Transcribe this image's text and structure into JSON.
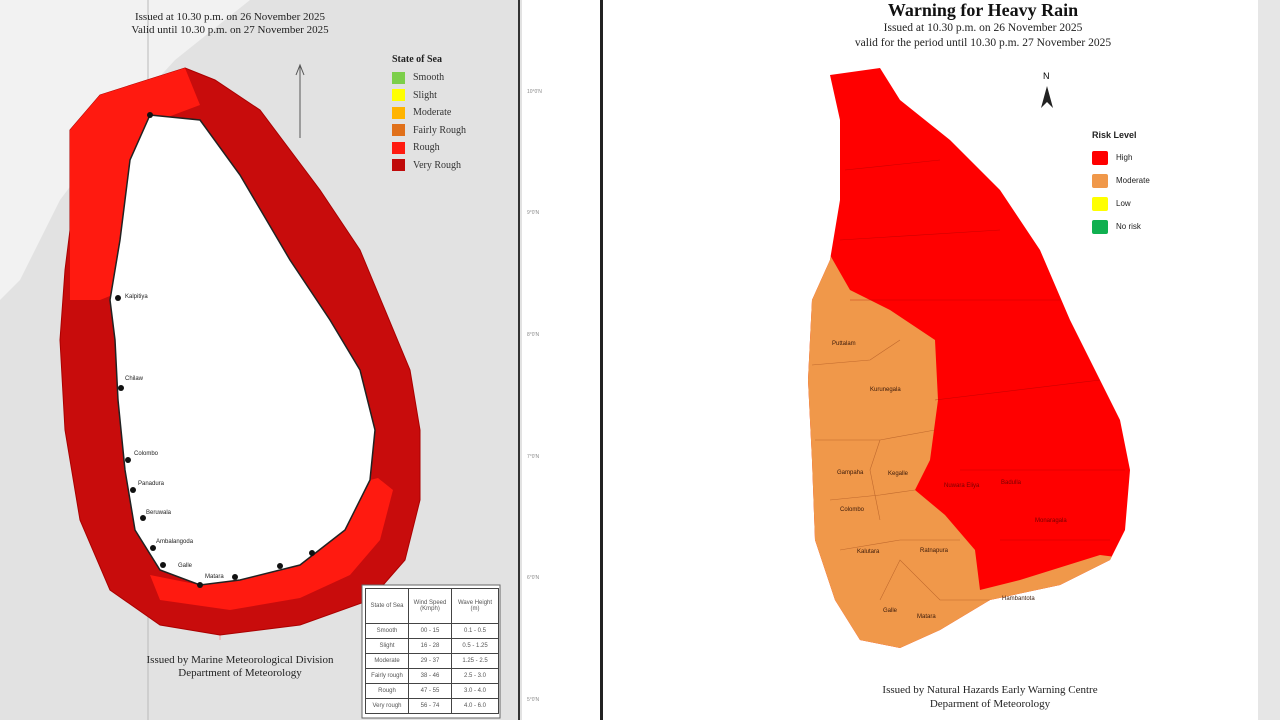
{
  "sea_map": {
    "issued": "Issued at 10.30 p.m. on 26 November 2025",
    "valid": "Valid until 10.30 p.m. on 27 November 2025",
    "legend": {
      "title": "State of Sea",
      "items": [
        {
          "label": "Smooth",
          "color": "#7ccf4a"
        },
        {
          "label": "Slight",
          "color": "#ffff00"
        },
        {
          "label": "Moderate",
          "color": "#ffb400"
        },
        {
          "label": "Fairly Rough",
          "color": "#e0701a"
        },
        {
          "label": "Rough",
          "color": "#ff1a10"
        },
        {
          "label": "Very Rough",
          "color": "#c00a0a"
        }
      ]
    },
    "places": [
      "Kalpitiya",
      "Chilaw",
      "Colombo",
      "Panadura",
      "Beruwala",
      "Ambalangoda",
      "Galle",
      "Matara"
    ],
    "lat_ticks": [
      "10°0'N",
      "9°0'N",
      "8°0'N",
      "7°0'N",
      "6°0'N",
      "5°0'N"
    ],
    "table": {
      "headers": [
        "State of Sea",
        "Wind Speed (Kmph)",
        "Wave Height (m)"
      ],
      "rows": [
        [
          "Smooth",
          "00 - 15",
          "0.1 - 0.5"
        ],
        [
          "Slight",
          "16 - 28",
          "0.5 - 1.25"
        ],
        [
          "Moderate",
          "29 - 37",
          "1.25 - 2.5"
        ],
        [
          "Fairly rough",
          "38 - 46",
          "2.5 - 3.0"
        ],
        [
          "Rough",
          "47 - 55",
          "3.0 - 4.0"
        ],
        [
          "Very rough",
          "56 - 74",
          "4.0 - 6.0"
        ]
      ]
    },
    "footer1": "Issued by Marine Meteorological Division",
    "footer2": "Department of Meteorology"
  },
  "rain_map": {
    "title": "Warning  for Heavy Rain",
    "issued": "Issued at 10.30 p.m. on 26 November 2025",
    "valid": "valid for the period until 10.30 p.m. 27 November 2025",
    "north": "N",
    "legend": {
      "title": "Risk Level",
      "items": [
        {
          "label": "High",
          "color": "#ff0000"
        },
        {
          "label": "Moderate",
          "color": "#f0984a"
        },
        {
          "label": "Low",
          "color": "#ffff00"
        },
        {
          "label": "No risk",
          "color": "#10b050"
        }
      ]
    },
    "districts": [
      "Puttalam",
      "Kurunegala",
      "Gampaha",
      "Kegalle",
      "Colombo",
      "Kalutara",
      "Ratnapura",
      "Galle",
      "Matara",
      "Hambantota",
      "Nuwara Eliya",
      "Badulla",
      "Monaragala"
    ],
    "footer1": "Issued by Natural Hazards Early Warning Centre",
    "footer2": "Deparment of Meteorology"
  }
}
